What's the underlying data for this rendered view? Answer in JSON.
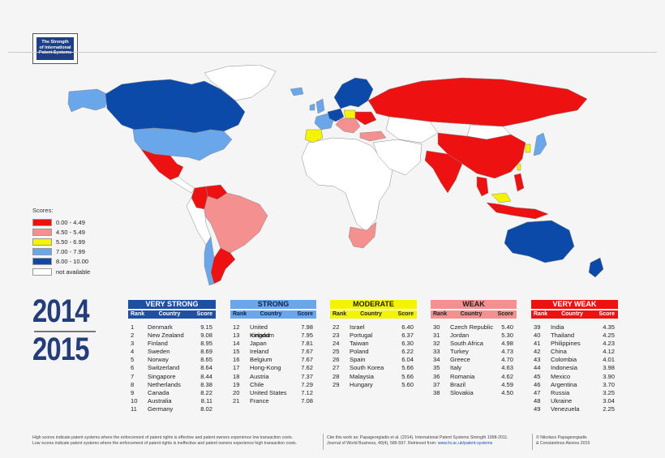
{
  "logo": {
    "line1": "The Strength",
    "line2": "of International",
    "line3": "Patent Systems"
  },
  "colors": {
    "very_weak": "#ee1111",
    "weak": "#f49090",
    "moderate": "#f4f400",
    "strong": "#6aa6ea",
    "very_strong": "#0b4aa8",
    "not_available": "#ffffff"
  },
  "legend": {
    "title": "Scores:",
    "items": [
      {
        "label": "0.00  -  4.49",
        "color": "#ee1111"
      },
      {
        "label": "4.50  -  5.49",
        "color": "#f49090"
      },
      {
        "label": "5.50  -  6.99",
        "color": "#f4f400"
      },
      {
        "label": "7.00  -  7.99",
        "color": "#6aa6ea"
      },
      {
        "label": "8.00  -  10.00",
        "color": "#0b4aa8"
      },
      {
        "label": "not available",
        "color": "#ffffff"
      }
    ]
  },
  "years": {
    "top": "2014",
    "bottom": "2015"
  },
  "headers": {
    "rank": "Rank",
    "country": "Country",
    "score": "Score"
  },
  "tiers": [
    {
      "title": "VERY STRONG",
      "title_bg": "#1e4fa3",
      "title_color": "#ffffff",
      "head_bg": "#1e4fa3",
      "head_color": "#ffffff",
      "rows": [
        [
          "1",
          "Denmark",
          "9.15"
        ],
        [
          "2",
          "New Zealand",
          "9.08"
        ],
        [
          "3",
          "Finland",
          "8.95"
        ],
        [
          "4",
          "Sweden",
          "8.69"
        ],
        [
          "5",
          "Norway",
          "8.65"
        ],
        [
          "6",
          "Switzerland",
          "8.64"
        ],
        [
          "7",
          "Singapore",
          "8.44"
        ],
        [
          "8",
          "Netherlands",
          "8.38"
        ],
        [
          "9",
          "Canada",
          "8.22"
        ],
        [
          "10",
          "Australia",
          "8.11"
        ],
        [
          "11",
          "Germany",
          "8.02"
        ]
      ]
    },
    {
      "title": "STRONG",
      "title_bg": "#6aa6ea",
      "title_color": "#10204a",
      "head_bg": "#6aa6ea",
      "head_color": "#10204a",
      "rows": [
        [
          "12",
          "United Kingdom",
          "7.98"
        ],
        [
          "13",
          "Iceland",
          "7.95"
        ],
        [
          "14",
          "Japan",
          "7.81"
        ],
        [
          "15",
          "Ireland",
          "7.67"
        ],
        [
          "16",
          "Belgium",
          "7.67"
        ],
        [
          "17",
          "Hong-Kong",
          "7.62"
        ],
        [
          "18",
          "Austria",
          "7.37"
        ],
        [
          "19",
          "Chile",
          "7.29"
        ],
        [
          "20",
          "United States",
          "7.12"
        ],
        [
          "21",
          "France",
          "7.08"
        ]
      ]
    },
    {
      "title": "MODERATE",
      "title_bg": "#f4f400",
      "title_color": "#222222",
      "head_bg": "#f4f400",
      "head_color": "#222222",
      "rows": [
        [
          "22",
          "Israel",
          "6.40"
        ],
        [
          "23",
          "Portugal",
          "6.37"
        ],
        [
          "24",
          "Taiwan",
          "6.30"
        ],
        [
          "25",
          "Poland",
          "6.22"
        ],
        [
          "26",
          "Spain",
          "6.04"
        ],
        [
          "27",
          "South Korea",
          "5.66"
        ],
        [
          "28",
          "Malaysia",
          "5.66"
        ],
        [
          "29",
          "Hungary",
          "5.60"
        ]
      ]
    },
    {
      "title": "WEAK",
      "title_bg": "#f49090",
      "title_color": "#222222",
      "head_bg": "#f49090",
      "head_color": "#222222",
      "rows": [
        [
          "30",
          "Czech Republic",
          "5.40"
        ],
        [
          "31",
          "Jordan",
          "5.30"
        ],
        [
          "32",
          "South Africa",
          "4.98"
        ],
        [
          "33",
          "Turkey",
          "4.73"
        ],
        [
          "34",
          "Greece",
          "4.70"
        ],
        [
          "35",
          "Italy",
          "4.63"
        ],
        [
          "36",
          "Romania",
          "4.62"
        ],
        [
          "37",
          "Brazil",
          "4.59"
        ],
        [
          "38",
          "Slovakia",
          "4.50"
        ]
      ]
    },
    {
      "title": "VERY WEAK",
      "title_bg": "#ee1111",
      "title_color": "#ffffff",
      "head_bg": "#ee1111",
      "head_color": "#ffffff",
      "rows": [
        [
          "39",
          "India",
          "4.35"
        ],
        [
          "40",
          "Thailand",
          "4.25"
        ],
        [
          "41",
          "Philippines",
          "4.23"
        ],
        [
          "42",
          "China",
          "4.12"
        ],
        [
          "43",
          "Colombia",
          "4.01"
        ],
        [
          "44",
          "Indonesia",
          "3.98"
        ],
        [
          "45",
          "Mexico",
          "3.90"
        ],
        [
          "46",
          "Argentina",
          "3.70"
        ],
        [
          "47",
          "Russia",
          "3.25"
        ],
        [
          "48",
          "Ukraine",
          "3.04"
        ],
        [
          "49",
          "Venezuela",
          "2.25"
        ]
      ]
    }
  ],
  "footer": {
    "left1": "High scores indicate patent systems where the enforcement of patent rights is effective and patent owners experience low transaction costs.",
    "left2": "Low scores indicate patent systems where the enforcement of patent rights is ineffective and patent owners experience high transaction costs.",
    "mid1": "Cite this work as:  Papageorgiadis et al. (2014). International Patent Systems Strength 1998-2011.",
    "mid2": "Journal of World Business, 49(4), 586-597. Retrieved from:",
    "mid_link": "www.liv.ac.uk/patent-systems",
    "right1": "© Nikolaos Papageorgiadis",
    "right2": "& Constantinos Alexiou 2015"
  }
}
